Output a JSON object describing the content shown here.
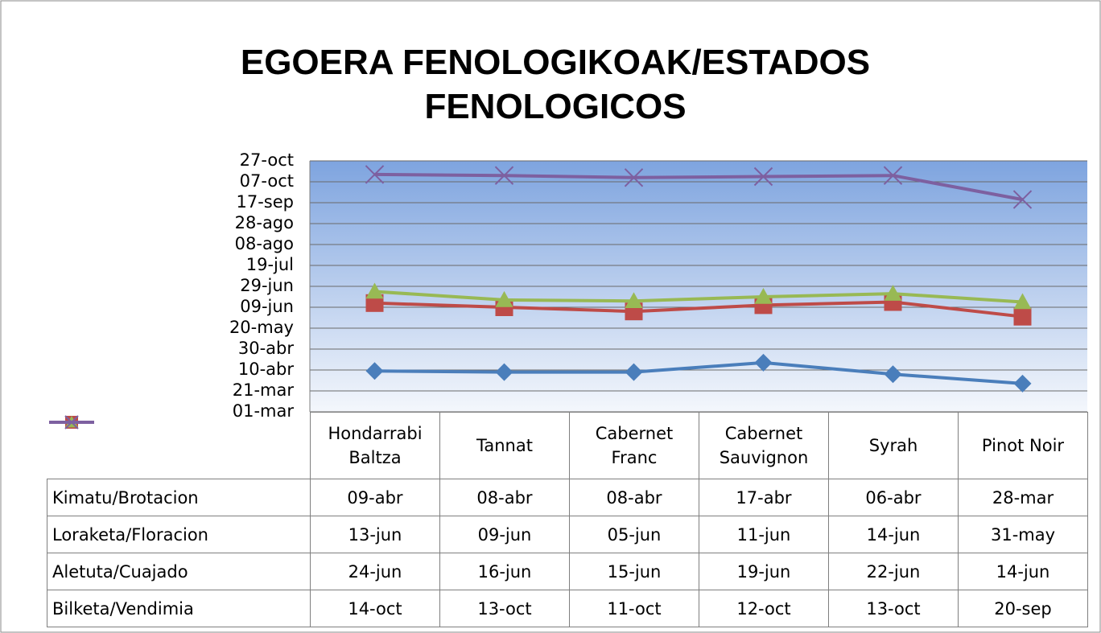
{
  "chart_data": {
    "type": "line",
    "title": "EGOERA FENOLOGIKOAK/ESTADOS FENOLOGICOS",
    "categories": [
      "Hondarrabi Baltza",
      "Tannat",
      "Cabernet Franc",
      "Cabernet Sauvignon",
      "Syrah",
      "Pinot Noir"
    ],
    "series": [
      {
        "name": "Kimatu/Brotacion",
        "color": "#4a7ebb",
        "marker": "diamond",
        "values": [
          99,
          98,
          98,
          107,
          96,
          87
        ],
        "value_labels": [
          "09-abr",
          "08-abr",
          "08-abr",
          "17-abr",
          "06-abr",
          "28-mar"
        ]
      },
      {
        "name": "Loraketa/Floracion",
        "color": "#be4b48",
        "marker": "square",
        "values": [
          164,
          160,
          156,
          162,
          165,
          151
        ],
        "value_labels": [
          "13-jun",
          "09-jun",
          "05-jun",
          "11-jun",
          "14-jun",
          "31-may"
        ]
      },
      {
        "name": "Aletuta/Cuajado",
        "color": "#98b954",
        "marker": "triangle",
        "values": [
          175,
          167,
          166,
          170,
          173,
          165
        ],
        "value_labels": [
          "24-jun",
          "16-jun",
          "15-jun",
          "19-jun",
          "22-jun",
          "14-jun"
        ]
      },
      {
        "name": "Bilketa/Vendimia",
        "color": "#7d60a0",
        "marker": "x",
        "values": [
          287,
          286,
          284,
          285,
          286,
          263
        ],
        "value_labels": [
          "14-oct",
          "13-oct",
          "11-oct",
          "12-oct",
          "13-oct",
          "20-sep"
        ]
      }
    ],
    "ylim": [
      60,
      300
    ],
    "yticks": [
      {
        "value": 60,
        "label": "01-mar"
      },
      {
        "value": 80,
        "label": "21-mar"
      },
      {
        "value": 100,
        "label": "10-abr"
      },
      {
        "value": 120,
        "label": "30-abr"
      },
      {
        "value": 140,
        "label": "20-may"
      },
      {
        "value": 160,
        "label": "09-jun"
      },
      {
        "value": 180,
        "label": "29-jun"
      },
      {
        "value": 200,
        "label": "19-jul"
      },
      {
        "value": 220,
        "label": "08-ago"
      },
      {
        "value": 240,
        "label": "28-ago"
      },
      {
        "value": 260,
        "label": "17-sep"
      },
      {
        "value": 280,
        "label": "07-oct"
      },
      {
        "value": 300,
        "label": "27-oct"
      }
    ],
    "grid": true
  }
}
